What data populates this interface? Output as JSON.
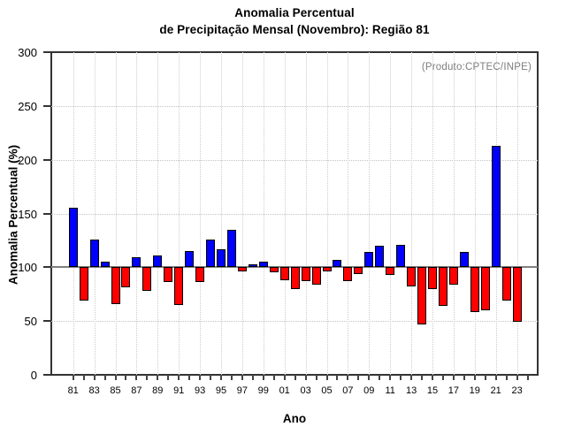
{
  "title": {
    "line1": "Anomalia Percentual",
    "line2": "de Precipitação Mensal (Novembro): Região 81"
  },
  "annotation": "(Produto:CPTEC/INPE)",
  "chart_data": {
    "type": "bar",
    "title": "Anomalia Percentual de Precipitação Mensal (Novembro): Região 81",
    "xlabel": "Ano",
    "ylabel": "Anomalia Percentual (%)",
    "ylim": [
      0,
      300
    ],
    "yticks": [
      0,
      50,
      100,
      150,
      200,
      250,
      300
    ],
    "baseline": 100,
    "grid": {
      "horizontal_dotted_at": [
        50,
        150,
        200,
        250
      ],
      "vertical_dotted_at_labeled_years": true,
      "solid_reference_line_at": 100
    },
    "legend_position": "none",
    "categories": [
      "81",
      "82",
      "83",
      "84",
      "85",
      "86",
      "87",
      "88",
      "89",
      "90",
      "91",
      "92",
      "93",
      "94",
      "95",
      "96",
      "97",
      "98",
      "99",
      "00",
      "01",
      "02",
      "03",
      "04",
      "05",
      "06",
      "07",
      "08",
      "09",
      "10",
      "11",
      "12",
      "13",
      "14",
      "15",
      "16",
      "17",
      "18",
      "19",
      "20",
      "21",
      "22",
      "23"
    ],
    "values": [
      155,
      69,
      126,
      105,
      66,
      81,
      109,
      78,
      111,
      86,
      65,
      115,
      86,
      126,
      117,
      135,
      96,
      103,
      105,
      95,
      88,
      80,
      87,
      84,
      96,
      107,
      87,
      94,
      114,
      120,
      93,
      121,
      82,
      47,
      80,
      64,
      84,
      114,
      58,
      60,
      213,
      69,
      49
    ],
    "xtick_labels": [
      "81",
      "83",
      "85",
      "87",
      "89",
      "91",
      "93",
      "95",
      "97",
      "99",
      "01",
      "03",
      "05",
      "07",
      "09",
      "11",
      "13",
      "15",
      "17",
      "19",
      "21",
      "23"
    ],
    "colors": {
      "above_baseline": "#0000FF",
      "below_baseline": "#FF0000",
      "bar_border": "#000000",
      "reference_line": "#808080",
      "grid": "#C4C4C4",
      "annotation_text": "#7D7D7D",
      "frame": "#333333"
    }
  }
}
